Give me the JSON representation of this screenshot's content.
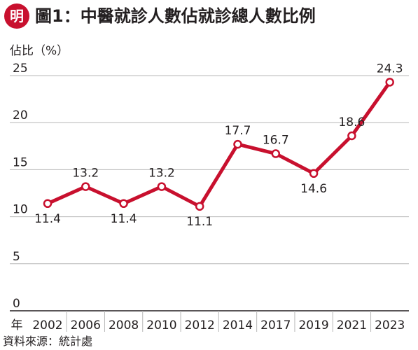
{
  "logo": {
    "char": "明",
    "color": "#c8102e"
  },
  "title": "圖1：中醫就診人數佔就診總人數比例",
  "source": "資料來源：統計處",
  "chart_data": {
    "type": "line",
    "title": "圖1：中醫就診人數佔就診總人數比例",
    "ylabel": "佔比（%）",
    "xlabel": "年",
    "ylim": [
      0,
      25
    ],
    "yticks": [
      "0",
      "5",
      "10",
      "15",
      "20",
      "25"
    ],
    "categories": [
      "2002",
      "2006",
      "2008",
      "2010",
      "2012",
      "2014",
      "2017",
      "2019",
      "2021",
      "2023"
    ],
    "series": [
      {
        "values": [
          11.4,
          13.2,
          11.4,
          13.2,
          11.1,
          17.7,
          16.7,
          14.6,
          18.6,
          24.3
        ]
      }
    ],
    "labels": [
      "11.4",
      "13.2",
      "11.4",
      "13.2",
      "11.1",
      "17.7",
      "16.7",
      "14.6",
      "18.6",
      "24.3"
    ],
    "label_position": [
      "below",
      "above",
      "below",
      "above",
      "below",
      "above",
      "above",
      "below",
      "above",
      "above"
    ],
    "grid": "horizontal",
    "line_color": "#c8102e",
    "grid_color": "#b7b7b7"
  }
}
